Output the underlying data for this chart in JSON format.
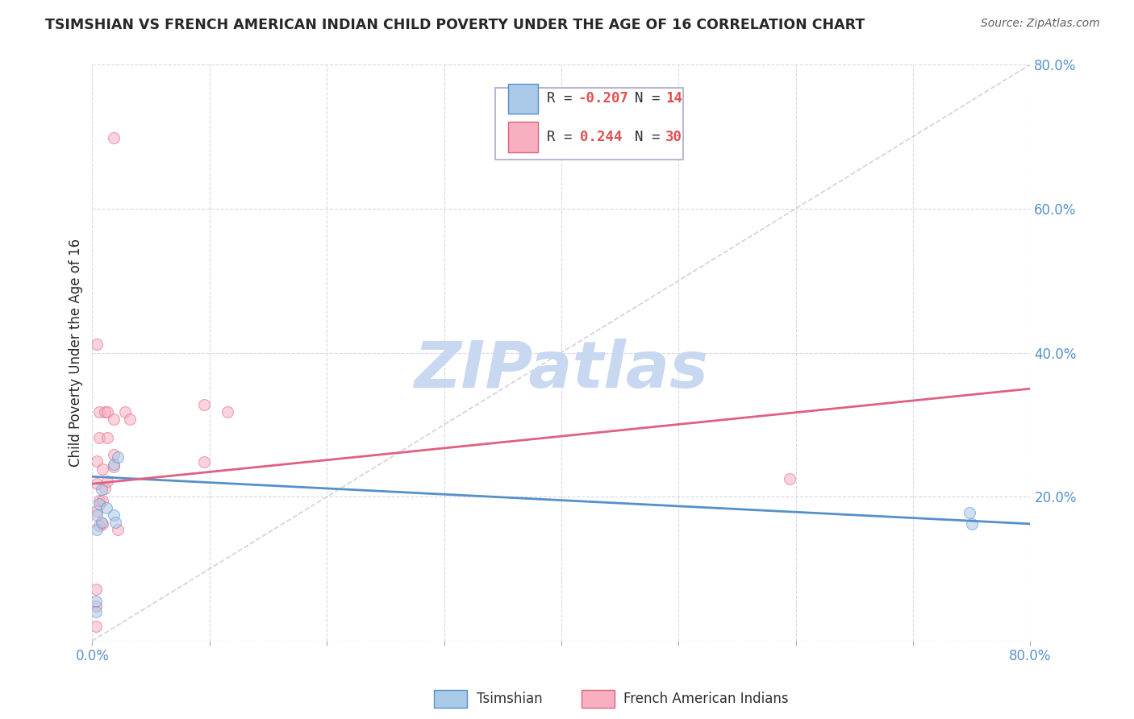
{
  "title": "TSIMSHIAN VS FRENCH AMERICAN INDIAN CHILD POVERTY UNDER THE AGE OF 16 CORRELATION CHART",
  "source": "Source: ZipAtlas.com",
  "ylabel": "Child Poverty Under the Age of 16",
  "xlim": [
    0.0,
    0.8
  ],
  "ylim": [
    0.0,
    0.8
  ],
  "x_ticks": [
    0.0,
    0.1,
    0.2,
    0.3,
    0.4,
    0.5,
    0.6,
    0.7,
    0.8
  ],
  "y_ticks": [
    0.0,
    0.2,
    0.4,
    0.6,
    0.8
  ],
  "watermark_text": "ZIPatlas",
  "watermark_color": "#c8d8f0",
  "tsimshian_points": [
    [
      0.003,
      0.055
    ],
    [
      0.003,
      0.04
    ],
    [
      0.004,
      0.175
    ],
    [
      0.004,
      0.155
    ],
    [
      0.006,
      0.19
    ],
    [
      0.008,
      0.21
    ],
    [
      0.008,
      0.165
    ],
    [
      0.012,
      0.185
    ],
    [
      0.018,
      0.245
    ],
    [
      0.018,
      0.175
    ],
    [
      0.02,
      0.165
    ],
    [
      0.022,
      0.255
    ],
    [
      0.748,
      0.178
    ],
    [
      0.75,
      0.162
    ]
  ],
  "french_ai_points": [
    [
      0.003,
      0.02
    ],
    [
      0.003,
      0.048
    ],
    [
      0.003,
      0.072
    ],
    [
      0.004,
      0.18
    ],
    [
      0.004,
      0.218
    ],
    [
      0.004,
      0.25
    ],
    [
      0.006,
      0.16
    ],
    [
      0.006,
      0.195
    ],
    [
      0.006,
      0.282
    ],
    [
      0.006,
      0.318
    ],
    [
      0.009,
      0.162
    ],
    [
      0.009,
      0.195
    ],
    [
      0.009,
      0.238
    ],
    [
      0.011,
      0.212
    ],
    [
      0.011,
      0.318
    ],
    [
      0.013,
      0.222
    ],
    [
      0.013,
      0.318
    ],
    [
      0.013,
      0.282
    ],
    [
      0.018,
      0.242
    ],
    [
      0.018,
      0.258
    ],
    [
      0.018,
      0.308
    ],
    [
      0.022,
      0.155
    ],
    [
      0.028,
      0.318
    ],
    [
      0.032,
      0.308
    ],
    [
      0.095,
      0.328
    ],
    [
      0.095,
      0.248
    ],
    [
      0.115,
      0.318
    ],
    [
      0.595,
      0.225
    ],
    [
      0.018,
      0.698
    ],
    [
      0.004,
      0.412
    ]
  ],
  "tsimshian_scatter_color": "#aac8e8",
  "tsimshian_scatter_edge": "#5590c8",
  "french_ai_scatter_color": "#f8b0c0",
  "french_ai_scatter_edge": "#e06080",
  "tsimshian_line_color": "#5590c8",
  "tsimshian_line_intercept": 0.228,
  "tsimshian_line_slope": -0.082,
  "french_ai_line_color": "#e06080",
  "french_ai_line_intercept": 0.218,
  "french_ai_line_slope": 0.165,
  "diagonal_color": "#c8c8c8",
  "background_color": "#ffffff",
  "grid_color": "#d8d8e8",
  "title_color": "#282828",
  "axis_label_color": "#5590c8",
  "ylabel_color": "#282828",
  "marker_size": 100,
  "marker_alpha": 0.55,
  "legend_R1": "-0.207",
  "legend_N1": "14",
  "legend_R2": "0.244",
  "legend_N2": "30"
}
